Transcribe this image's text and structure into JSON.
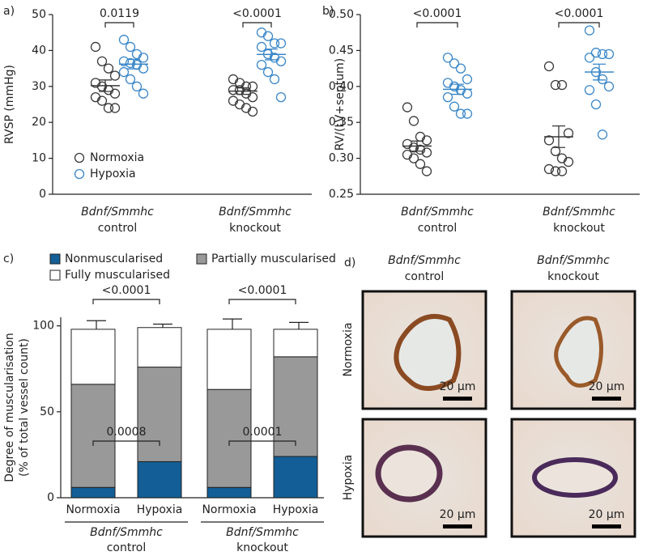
{
  "chart_data": [
    {
      "type": "dotplot",
      "panel_label": "a)",
      "ylabel": "RVSP (mmHg)",
      "ylim": [
        0,
        50
      ],
      "yticks": [
        0,
        10,
        20,
        30,
        40,
        50
      ],
      "legend": "lower left",
      "categories": [
        {
          "gene": "Bdnf/Smmhc",
          "label": "control"
        },
        {
          "gene": "Bdnf/Smmhc",
          "label": "knockout"
        }
      ],
      "comparisons": [
        "0.0119",
        "<0.0001"
      ],
      "series": [
        {
          "name": "Normoxia",
          "color": "#3a3a3a",
          "values": [
            [
              41,
              37,
              35,
              33,
              31,
              30,
              29,
              28,
              27,
              26,
              24,
              24
            ],
            [
              32,
              31,
              30,
              30,
              29,
              29,
              28,
              27,
              26,
              25,
              24,
              23
            ]
          ],
          "mean": [
            30.2,
            28.7
          ],
          "sem": [
            1.6,
            0.9
          ]
        },
        {
          "name": "Hypoxia",
          "color": "#3a87c8",
          "values": [
            [
              43,
              41,
              39,
              38,
              37,
              36.5,
              36,
              35,
              34,
              32,
              30,
              28
            ],
            [
              45,
              44,
              42,
              42,
              41,
              39,
              38,
              37,
              36,
              34,
              32,
              27
            ]
          ],
          "mean": [
            36.2,
            38.9
          ],
          "sem": [
            1.3,
            1.5
          ]
        }
      ]
    },
    {
      "type": "dotplot",
      "panel_label": "b)",
      "ylabel": "RV/(LV+septum)",
      "ylim": [
        0.25,
        0.5
      ],
      "yticks": [
        0.25,
        {
          "value": 0.3,
          "label": "0.30"
        },
        0.35,
        {
          "value": 0.4,
          "label": "0.40"
        },
        0.45,
        {
          "value": 0.5,
          "label": "0.50"
        }
      ],
      "categories": [
        {
          "gene": "Bdnf/Smmhc",
          "label": "control"
        },
        {
          "gene": "Bdnf/Smmhc",
          "label": "knockout"
        }
      ],
      "comparisons": [
        "<0.0001",
        "<0.0001"
      ],
      "series": [
        {
          "name": "Normoxia",
          "color": "#3a3a3a",
          "values": [
            [
              0.371,
              0.352,
              0.33,
              0.325,
              0.32,
              0.315,
              0.312,
              0.308,
              0.305,
              0.3,
              0.292,
              0.282
            ],
            [
              0.428,
              0.402,
              0.402,
              0.335,
              0.325,
              0.31,
              0.3,
              0.295,
              0.285,
              0.282,
              0.282
            ]
          ],
          "mean": [
            0.317,
            0.33
          ],
          "sem": [
            0.007,
            0.015
          ]
        },
        {
          "name": "Hypoxia",
          "color": "#3a87c8",
          "values": [
            [
              0.44,
              0.432,
              0.425,
              0.41,
              0.405,
              0.4,
              0.395,
              0.39,
              0.385,
              0.372,
              0.362,
              0.362
            ],
            [
              0.478,
              0.447,
              0.445,
              0.445,
              0.44,
              0.42,
              0.41,
              0.4,
              0.395,
              0.375,
              0.333
            ]
          ],
          "mean": [
            0.396,
            0.42
          ],
          "sem": [
            0.007,
            0.011
          ]
        }
      ]
    },
    {
      "type": "stacked_bar",
      "panel_label": "c)",
      "ylabel": [
        "Degree of muscularisation",
        "(% of total vessel count)"
      ],
      "ylim": [
        0,
        105
      ],
      "yticks": [
        0,
        50,
        100
      ],
      "categories": [
        "Normoxia",
        "Hypoxia",
        "Normoxia",
        "Hypoxia"
      ],
      "groups": [
        {
          "gene": "Bdnf/Smmhc",
          "label": "control"
        },
        {
          "gene": "Bdnf/Smmhc",
          "label": "knockout"
        }
      ],
      "comparisons": [
        {
          "upper": "<0.0001",
          "lower": "0.0008"
        },
        {
          "upper": "<0.0001",
          "lower": "0.0001"
        }
      ],
      "series": [
        {
          "name": "Nonmuscularised",
          "color": "#135e96",
          "values": [
            6,
            21,
            6,
            24
          ],
          "errors": [
            1,
            2,
            1.5,
            3.5
          ]
        },
        {
          "name": "Partially muscularised",
          "color": "#999999",
          "values": [
            60,
            55,
            57,
            58
          ],
          "errors": [
            3.5,
            11,
            3.5,
            3
          ]
        },
        {
          "name": "Fully muscularised",
          "color": "#ffffff",
          "values": [
            32,
            23,
            35,
            16
          ],
          "errors": [
            5,
            2,
            6,
            4
          ]
        }
      ]
    }
  ],
  "micrographs": {
    "panel_label": "d)",
    "columns": [
      {
        "gene": "Bdnf/Smmhc",
        "label": "control"
      },
      {
        "gene": "Bdnf/Smmhc",
        "label": "knockout"
      }
    ],
    "rows": [
      "Normoxia",
      "Hypoxia"
    ],
    "scale_bars": [
      "20 µm",
      "20 µm",
      "20 µm",
      "20 µm"
    ]
  }
}
